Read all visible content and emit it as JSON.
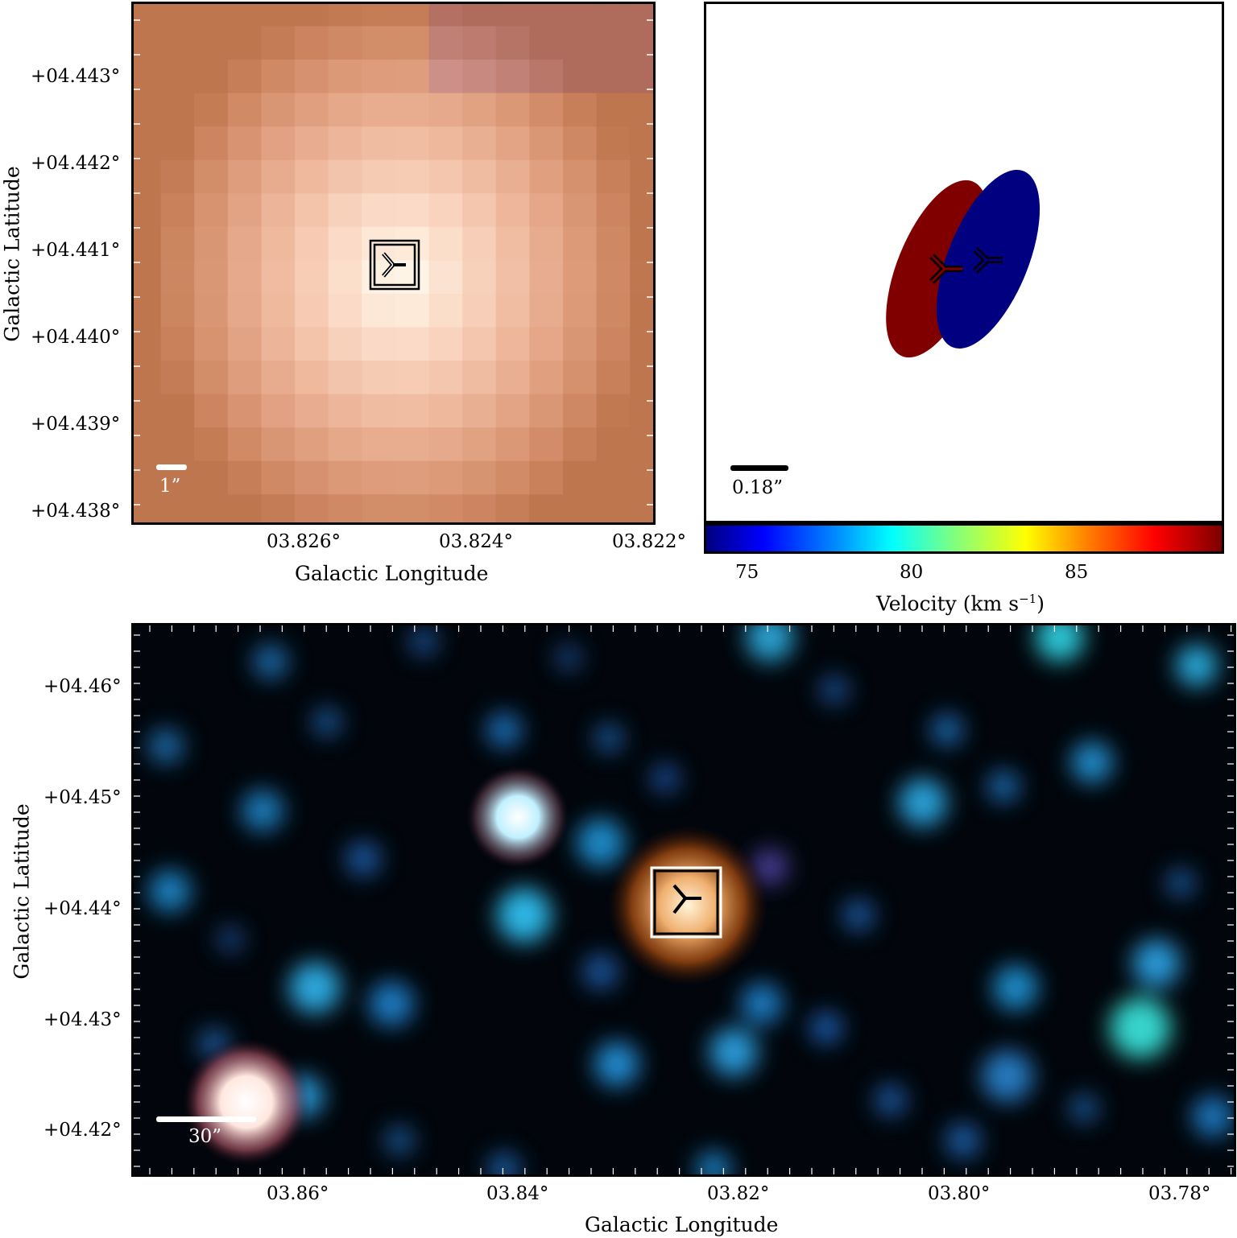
{
  "panel_top_left": {
    "y_ticks": [
      "+04.443°",
      "+04.442°",
      "+04.441°",
      "+04.440°",
      "+04.439°",
      "+04.438°"
    ],
    "x_ticks": [
      "03.826°",
      "03.824°",
      "03.822°"
    ],
    "ylabel": "Galactic Latitude",
    "xlabel": "Galactic Longitude",
    "scale_label": "1”",
    "marker_icon": "three-prong-source-marker"
  },
  "panel_top_right": {
    "scale_label": "0.18”",
    "colorbar_ticks": [
      "75",
      "80",
      "85"
    ],
    "colorbar_label": "Velocity (km s",
    "colorbar_label_sup": "−1",
    "colorbar_label_end": ")",
    "colors": {
      "red_ellipse": "#800000",
      "blue_ellipse": "#000080"
    }
  },
  "panel_bottom": {
    "y_ticks": [
      "+04.46°",
      "+04.45°",
      "+04.44°",
      "+04.43°",
      "+04.42°"
    ],
    "x_ticks": [
      "03.86°",
      "03.84°",
      "03.82°",
      "03.80°",
      "03.78°"
    ],
    "ylabel": "Galactic Latitude",
    "xlabel": "Galactic Longitude",
    "scale_label": "30”",
    "marker_icon": "three-prong-source-marker"
  }
}
